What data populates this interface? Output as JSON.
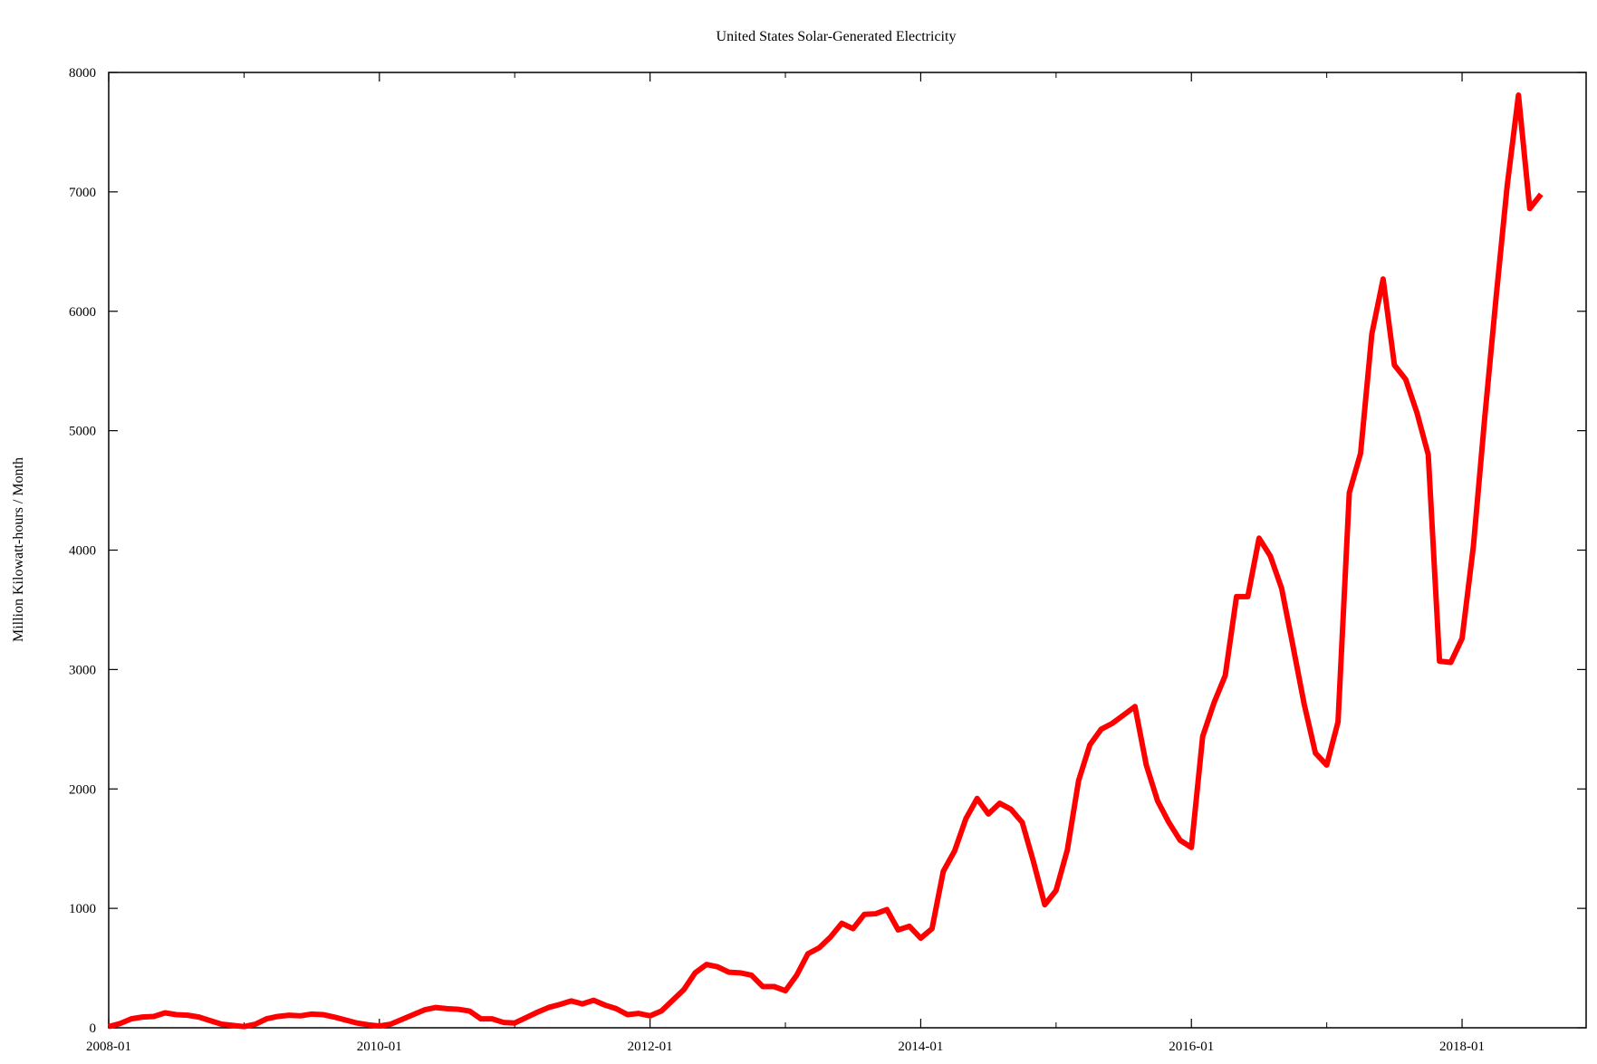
{
  "chart_data": {
    "type": "line",
    "title": "United States Solar-Generated Electricity",
    "xlabel": "",
    "ylabel": "Million Kilowatt-hours / Month",
    "xlim": [
      "2008-01",
      "2018-12"
    ],
    "ylim": [
      0,
      8000
    ],
    "x_tick_labels": [
      "2008-01",
      "2010-01",
      "2012-01",
      "2014-01",
      "2016-01",
      "2018-01"
    ],
    "y_tick_labels": [
      "0",
      "1000",
      "2000",
      "3000",
      "4000",
      "5000",
      "6000",
      "7000",
      "8000"
    ],
    "grid": false,
    "legend": "none",
    "series": [
      {
        "color": "#ff0000",
        "x": [
          "2008-01",
          "2008-02",
          "2008-03",
          "2008-04",
          "2008-05",
          "2008-06",
          "2008-07",
          "2008-08",
          "2008-09",
          "2008-10",
          "2008-11",
          "2008-12",
          "2009-01",
          "2009-02",
          "2009-03",
          "2009-04",
          "2009-05",
          "2009-06",
          "2009-07",
          "2009-08",
          "2009-09",
          "2009-10",
          "2009-11",
          "2009-12",
          "2010-01",
          "2010-02",
          "2010-03",
          "2010-04",
          "2010-05",
          "2010-06",
          "2010-07",
          "2010-08",
          "2010-09",
          "2010-10",
          "2010-11",
          "2010-12",
          "2011-01",
          "2011-02",
          "2011-03",
          "2011-04",
          "2011-05",
          "2011-06",
          "2011-07",
          "2011-08",
          "2011-09",
          "2011-10",
          "2011-11",
          "2011-12",
          "2012-01",
          "2012-02",
          "2012-03",
          "2012-04",
          "2012-05",
          "2012-06",
          "2012-07",
          "2012-08",
          "2012-09",
          "2012-10",
          "2012-11",
          "2012-12",
          "2013-01",
          "2013-02",
          "2013-03",
          "2013-04",
          "2013-05",
          "2013-06",
          "2013-07",
          "2013-08",
          "2013-09",
          "2013-10",
          "2013-11",
          "2013-12",
          "2014-01",
          "2014-02",
          "2014-03",
          "2014-04",
          "2014-05",
          "2014-06",
          "2014-07",
          "2014-08",
          "2014-09",
          "2014-10",
          "2014-11",
          "2014-12",
          "2015-01",
          "2015-02",
          "2015-03",
          "2015-04",
          "2015-05",
          "2015-06",
          "2015-07",
          "2015-08",
          "2015-09",
          "2015-10",
          "2015-11",
          "2015-12",
          "2016-01",
          "2016-02",
          "2016-03",
          "2016-04",
          "2016-05",
          "2016-06",
          "2016-07",
          "2016-08",
          "2016-09",
          "2016-10",
          "2016-11",
          "2016-12",
          "2017-01",
          "2017-02",
          "2017-03",
          "2017-04",
          "2017-05",
          "2017-06",
          "2017-07",
          "2017-08",
          "2017-09",
          "2017-10",
          "2017-11",
          "2017-12",
          "2018-01",
          "2018-02",
          "2018-03",
          "2018-04",
          "2018-05",
          "2018-06",
          "2018-07",
          "2018-08"
        ],
        "y": [
          10,
          35,
          75,
          90,
          95,
          125,
          110,
          105,
          90,
          60,
          30,
          20,
          10,
          30,
          75,
          95,
          105,
          100,
          115,
          110,
          90,
          65,
          40,
          25,
          15,
          30,
          70,
          110,
          150,
          170,
          160,
          155,
          140,
          75,
          75,
          45,
          40,
          85,
          130,
          170,
          195,
          225,
          200,
          230,
          190,
          160,
          110,
          120,
          100,
          140,
          230,
          320,
          460,
          530,
          510,
          465,
          460,
          440,
          345,
          345,
          310,
          440,
          620,
          670,
          760,
          875,
          830,
          950,
          955,
          990,
          820,
          850,
          750,
          830,
          1310,
          1480,
          1750,
          1920,
          1790,
          1880,
          1830,
          1720,
          1390,
          1030,
          1150,
          1490,
          2070,
          2370,
          2500,
          2550,
          2620,
          2690,
          2200,
          1900,
          1720,
          1570,
          1510,
          2440,
          2720,
          2950,
          3610,
          3610,
          4100,
          3950,
          3680,
          3200,
          2710,
          2300,
          2200,
          2560,
          4480,
          4810,
          5810,
          6270,
          5550,
          5430,
          5150,
          4800,
          3070,
          3060,
          3260,
          4030,
          5100,
          6100,
          7050,
          7810,
          6860,
          6980
        ]
      }
    ]
  }
}
